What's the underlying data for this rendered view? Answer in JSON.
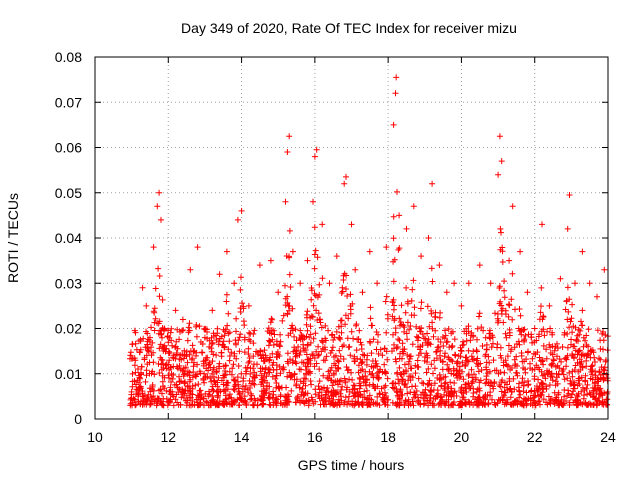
{
  "chart_data": {
    "type": "scatter",
    "title": "Day 349 of 2020, Rate Of TEC Index for receiver mizu",
    "xlabel": "GPS time / hours",
    "ylabel": "ROTI / TECUs",
    "xlim": [
      10,
      24
    ],
    "ylim": [
      0,
      0.08
    ],
    "xticks": [
      "10",
      "12",
      "14",
      "16",
      "18",
      "20",
      "22",
      "24"
    ],
    "yticks": [
      "0",
      "0.01",
      "0.02",
      "0.03",
      "0.04",
      "0.05",
      "0.06",
      "0.07",
      "0.08"
    ],
    "xtick_values": [
      10,
      12,
      14,
      16,
      18,
      20,
      22,
      24
    ],
    "ytick_values": [
      0,
      0.01,
      0.02,
      0.03,
      0.04,
      0.05,
      0.06,
      0.07,
      0.08
    ],
    "grid": true,
    "marker": "+",
    "color": "#ff0000",
    "segments": [
      {
        "x_start": 10.95,
        "x_end": 18.0
      },
      {
        "x_start": 18.1,
        "x_end": 24.0
      }
    ],
    "series": [
      {
        "name": "ROTI",
        "points": [
          [
            11.0,
            0.006
          ],
          [
            11.1,
            0.013
          ],
          [
            11.2,
            0.008
          ],
          [
            11.3,
            0.029
          ],
          [
            11.4,
            0.025
          ],
          [
            11.5,
            0.018
          ],
          [
            11.6,
            0.038
          ],
          [
            11.7,
            0.047
          ],
          [
            11.75,
            0.05
          ],
          [
            11.8,
            0.044
          ],
          [
            11.9,
            0.02
          ],
          [
            12.0,
            0.012
          ],
          [
            12.2,
            0.024
          ],
          [
            12.4,
            0.022
          ],
          [
            12.6,
            0.033
          ],
          [
            12.8,
            0.038
          ],
          [
            13.0,
            0.018
          ],
          [
            13.2,
            0.024
          ],
          [
            13.4,
            0.032
          ],
          [
            13.6,
            0.037
          ],
          [
            13.8,
            0.03
          ],
          [
            13.9,
            0.044
          ],
          [
            14.0,
            0.046
          ],
          [
            14.2,
            0.025
          ],
          [
            14.5,
            0.034
          ],
          [
            14.8,
            0.035
          ],
          [
            15.0,
            0.028
          ],
          [
            15.2,
            0.048
          ],
          [
            15.25,
            0.059
          ],
          [
            15.3,
            0.0625
          ],
          [
            15.4,
            0.037
          ],
          [
            15.6,
            0.03
          ],
          [
            15.8,
            0.035
          ],
          [
            15.95,
            0.048
          ],
          [
            16.0,
            0.058
          ],
          [
            16.05,
            0.0595
          ],
          [
            16.2,
            0.043
          ],
          [
            16.4,
            0.03
          ],
          [
            16.6,
            0.036
          ],
          [
            16.8,
            0.052
          ],
          [
            16.85,
            0.0535
          ],
          [
            17.0,
            0.043
          ],
          [
            17.1,
            0.033
          ],
          [
            17.3,
            0.028
          ],
          [
            17.5,
            0.037
          ],
          [
            17.7,
            0.03
          ],
          [
            17.95,
            0.038
          ],
          [
            18.15,
            0.065
          ],
          [
            18.2,
            0.072
          ],
          [
            18.22,
            0.0755
          ],
          [
            18.3,
            0.045
          ],
          [
            18.5,
            0.042
          ],
          [
            18.7,
            0.047
          ],
          [
            18.9,
            0.036
          ],
          [
            19.1,
            0.04
          ],
          [
            19.2,
            0.052
          ],
          [
            19.4,
            0.034
          ],
          [
            19.6,
            0.028
          ],
          [
            19.8,
            0.03
          ],
          [
            20.0,
            0.025
          ],
          [
            20.2,
            0.03
          ],
          [
            20.5,
            0.034
          ],
          [
            20.8,
            0.03
          ],
          [
            21.0,
            0.054
          ],
          [
            21.05,
            0.0625
          ],
          [
            21.1,
            0.057
          ],
          [
            21.3,
            0.035
          ],
          [
            21.4,
            0.047
          ],
          [
            21.6,
            0.037
          ],
          [
            21.8,
            0.028
          ],
          [
            22.0,
            0.02
          ],
          [
            22.2,
            0.043
          ],
          [
            22.4,
            0.025
          ],
          [
            22.7,
            0.031
          ],
          [
            22.9,
            0.042
          ],
          [
            22.95,
            0.0495
          ],
          [
            23.1,
            0.03
          ],
          [
            23.3,
            0.037
          ],
          [
            23.5,
            0.03
          ],
          [
            23.7,
            0.027
          ],
          [
            23.9,
            0.033
          ]
        ]
      }
    ]
  }
}
